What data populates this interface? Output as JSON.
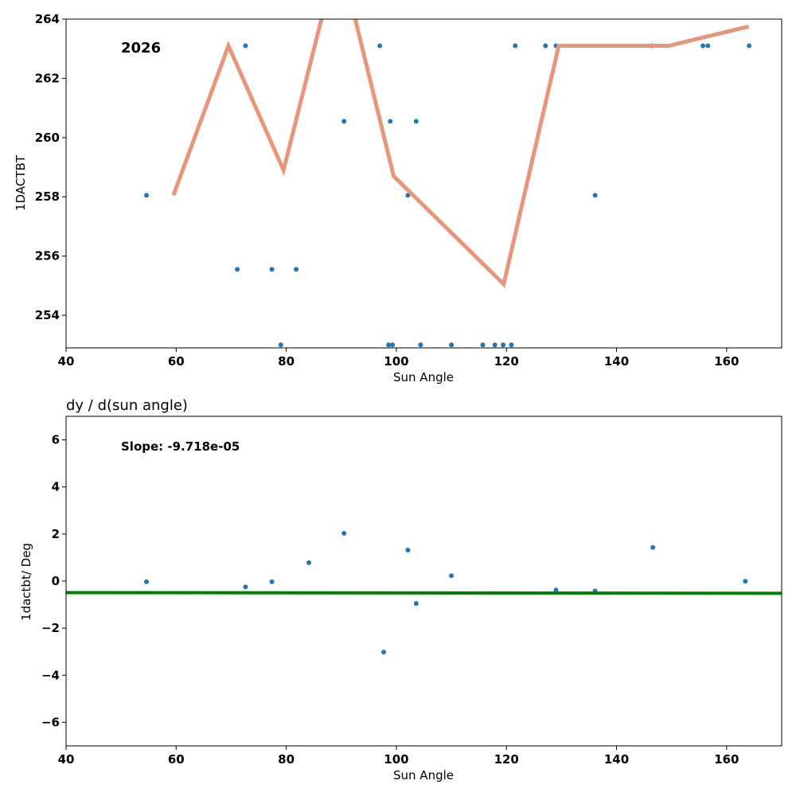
{
  "chart_data": [
    {
      "type": "scatter",
      "title": "",
      "annotation": "2026",
      "xlabel": "Sun Angle",
      "ylabel": "1DACTBT",
      "xlim": [
        40,
        170
      ],
      "ylim": [
        252.9,
        264
      ],
      "xticks": [
        40,
        60,
        80,
        100,
        120,
        140,
        160
      ],
      "yticks": [
        254,
        256,
        258,
        260,
        262,
        264
      ],
      "series": [
        {
          "name": "data",
          "kind": "scatter",
          "color": "#1f77b4",
          "x": [
            54.6,
            72.6,
            71.1,
            77.4,
            81.8,
            79.0,
            90.5,
            97.0,
            98.9,
            98.6,
            99.3,
            102.1,
            103.6,
            104.4,
            110.0,
            115.7,
            117.9,
            119.4,
            120.9,
            121.6,
            127.1,
            129.0,
            136.1,
            146.4,
            155.7,
            156.6,
            164.1
          ],
          "y": [
            258.05,
            263.1,
            255.55,
            255.55,
            255.55,
            253.0,
            260.55,
            263.1,
            260.55,
            253.0,
            253.0,
            258.05,
            260.55,
            253.0,
            253.0,
            253.0,
            253.0,
            253.0,
            253.0,
            263.1,
            263.1,
            263.1,
            258.05,
            263.1,
            263.1,
            263.1,
            263.1
          ]
        },
        {
          "name": "trend",
          "kind": "line",
          "color": "#e8967a",
          "x": [
            59.5,
            69.5,
            79.5,
            89.5,
            99.5,
            119.5,
            129.5,
            139.5,
            149.5,
            164.0
          ],
          "y": [
            258.05,
            263.1,
            258.9,
            266.3,
            258.7,
            255.05,
            263.1,
            263.1,
            263.1,
            263.75
          ]
        }
      ]
    },
    {
      "type": "scatter",
      "title": "dy / d(sun angle)",
      "annotation": "Slope: -9.718e-05",
      "xlabel": "Sun Angle",
      "ylabel": "1dactbt/ Deg",
      "xlim": [
        40,
        170
      ],
      "ylim": [
        -7,
        7
      ],
      "xticks": [
        40,
        60,
        80,
        100,
        120,
        140,
        160
      ],
      "yticks": [
        -6,
        -4,
        -2,
        0,
        2,
        4,
        6
      ],
      "series": [
        {
          "name": "derivative",
          "kind": "scatter",
          "color": "#1f77b4",
          "x": [
            54.6,
            72.6,
            77.4,
            84.1,
            90.5,
            97.7,
            102.1,
            103.6,
            110.0,
            129.0,
            136.1,
            146.6,
            163.4
          ],
          "y": [
            -0.03,
            -0.25,
            -0.03,
            0.78,
            2.03,
            -3.02,
            1.32,
            -0.95,
            0.23,
            -0.38,
            -0.42,
            1.43,
            -0.01
          ]
        },
        {
          "name": "fit",
          "kind": "line",
          "color": "#008000",
          "x": [
            40,
            170
          ],
          "y": [
            -0.49,
            -0.52
          ]
        }
      ]
    }
  ]
}
